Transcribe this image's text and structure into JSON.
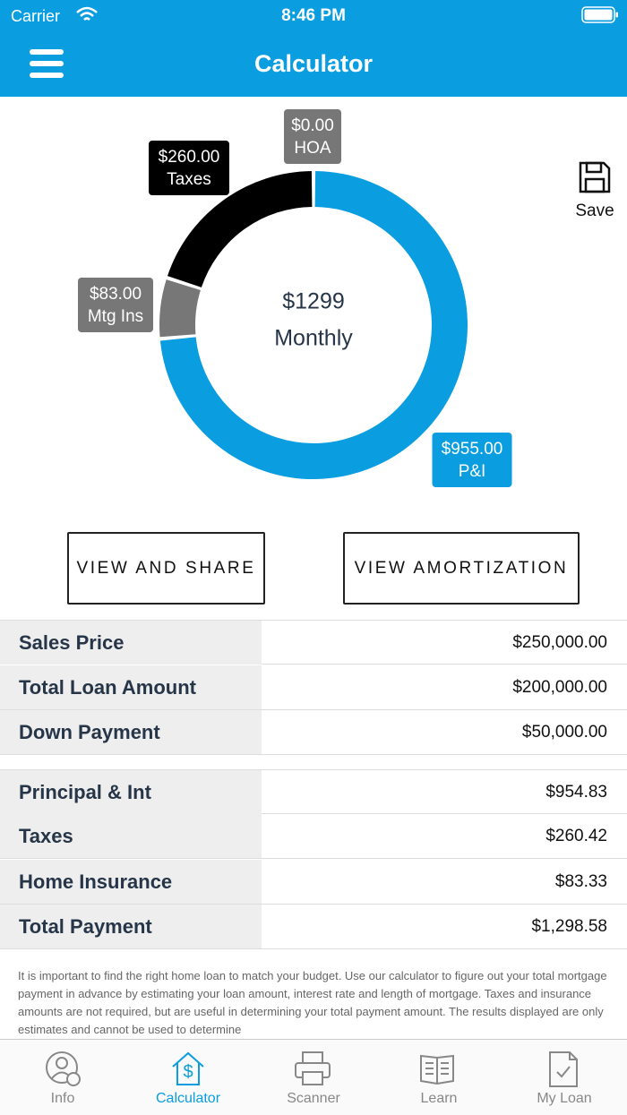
{
  "status_bar": {
    "carrier": "Carrier",
    "time": "8:46 PM"
  },
  "header": {
    "title": "Calculator"
  },
  "chart_data": {
    "type": "donut",
    "center_value": "$1299",
    "center_label": "Monthly",
    "categories": [
      "P&I",
      "Mtg Ins",
      "Taxes",
      "HOA"
    ],
    "values": [
      955,
      83,
      260,
      0
    ],
    "value_labels": [
      "$955.00",
      "$83.00",
      "$260.00",
      "$0.00"
    ],
    "colors": [
      "#0a9de0",
      "#777777",
      "#000000",
      "#777777"
    ]
  },
  "save": "Save",
  "buttons": [
    "VIEW AND SHARE",
    "VIEW AMORTIZATION"
  ],
  "tables": [
    {
      "rows": [
        [
          "Sales Price",
          "$250,000.00"
        ],
        [
          "Total Loan Amount",
          "$200,000.00"
        ],
        [
          "Down Payment",
          "$50,000.00"
        ]
      ]
    },
    {
      "rows": [
        [
          "Principal & Int",
          "$954.83"
        ],
        [
          "Taxes",
          "$260.42"
        ],
        [
          "Home Insurance",
          "$83.33"
        ],
        [
          "Total Payment",
          "$1,298.58"
        ]
      ]
    }
  ],
  "disclaimer": "It is important to find the right home loan to match your budget. Use our calculator to figure out your total mortgage payment in advance by estimating your loan amount, interest rate and length of mortgage. Taxes and insurance amounts are not required, but are useful in determining your total payment amount. The results displayed are only estimates and cannot be used to determine",
  "tabs": [
    "Info",
    "Calculator",
    "Scanner",
    "Learn",
    "My Loan"
  ],
  "active_tab": 1
}
